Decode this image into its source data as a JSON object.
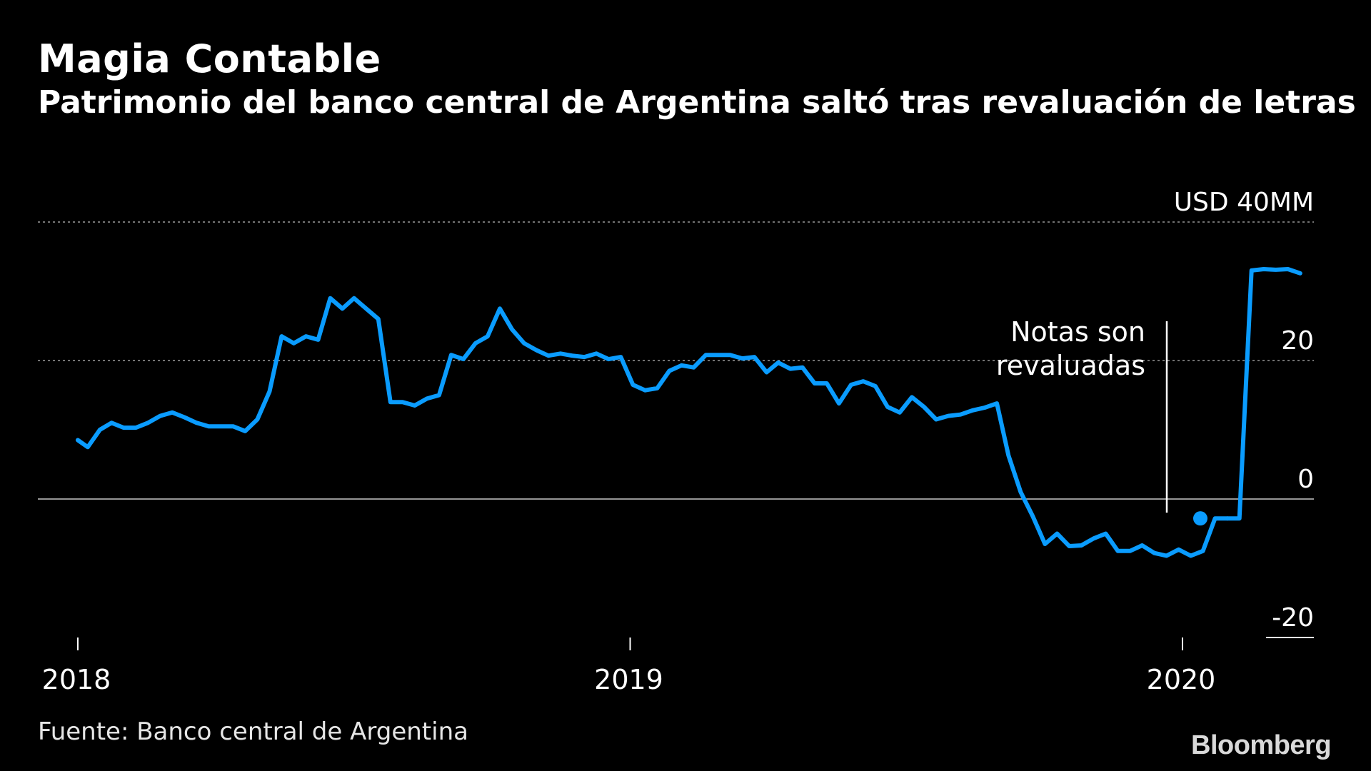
{
  "header": {
    "title": "Magia Contable",
    "subtitle": "Patrimonio del banco central de Argentina saltó tras revaluación de letras"
  },
  "footer": {
    "source": "Fuente: Banco central de Argentina",
    "logo": "Bloomberg"
  },
  "colors": {
    "background": "#000000",
    "line": "#0a9cff",
    "grid": "#9a9a9a",
    "zero_line": "#c8c8c8",
    "text": "#ffffff"
  },
  "chart_data": {
    "type": "line",
    "title": "Magia Contable",
    "subtitle": "Patrimonio del banco central de Argentina saltó tras revaluación de letras",
    "y_unit_label": "USD 40MM",
    "ylim": [
      -20,
      40
    ],
    "y_ticks": [
      40,
      20,
      0,
      -20
    ],
    "y_tick_labels": [
      "USD 40MM",
      "20",
      "0",
      "-20"
    ],
    "xlim": [
      2018.0,
      2020.24
    ],
    "x_ticks": [
      2018,
      2019,
      2020
    ],
    "x_tick_labels": [
      "2018",
      "2019",
      "2020"
    ],
    "grid": true,
    "series": [
      {
        "x": [
          2018.0,
          2018.018,
          2018.04,
          2018.061,
          2018.083,
          2018.105,
          2018.127,
          2018.149,
          2018.171,
          2018.193,
          2018.215,
          2018.237,
          2018.259,
          2018.281,
          2018.303,
          2018.325,
          2018.347,
          2018.369,
          2018.391,
          2018.413,
          2018.435,
          2018.457,
          2018.479,
          2018.5,
          2018.522,
          2018.544,
          2018.566,
          2018.588,
          2018.61,
          2018.632,
          2018.654,
          2018.676,
          2018.698,
          2018.72,
          2018.742,
          2018.764,
          2018.786,
          2018.808,
          2018.83,
          2018.852,
          2018.874,
          2018.895,
          2018.917,
          2018.939,
          2018.961,
          2018.983,
          2019.005,
          2019.027,
          2019.049,
          2019.071,
          2019.093,
          2019.115,
          2019.137,
          2019.159,
          2019.181,
          2019.203,
          2019.225,
          2019.247,
          2019.268,
          2019.29,
          2019.312,
          2019.334,
          2019.356,
          2019.378,
          2019.4,
          2019.422,
          2019.444,
          2019.466,
          2019.488,
          2019.51,
          2019.532,
          2019.554,
          2019.576,
          2019.598,
          2019.62,
          2019.642,
          2019.664,
          2019.685,
          2019.707,
          2019.729,
          2019.751,
          2019.773,
          2019.795,
          2019.817,
          2019.839,
          2019.861,
          2019.883,
          2019.905,
          2019.927,
          2019.949,
          2019.971,
          2019.993,
          2020.015,
          2020.037,
          2020.059,
          2020.081
        ],
        "y": [
          8.5,
          7.5,
          10.0,
          11.0,
          10.3,
          10.3,
          11.0,
          12.0,
          12.5,
          11.8,
          11.0,
          10.5,
          10.5,
          10.5,
          9.8,
          11.5,
          15.5,
          23.5,
          22.5,
          23.5,
          23.0,
          29.0,
          27.5,
          29.0,
          27.5,
          26.0,
          14.0,
          14.0,
          13.5,
          14.5,
          15.0,
          20.8,
          20.2,
          22.5,
          23.5,
          27.5,
          24.5,
          22.5,
          21.5,
          20.7,
          21.0,
          20.7,
          20.5,
          21.0,
          20.2,
          20.5,
          16.5,
          15.7,
          16.0,
          18.5,
          19.3,
          19.0,
          20.8,
          20.8,
          20.8,
          20.3,
          20.5,
          18.3,
          19.7,
          18.8,
          19.0,
          16.7,
          16.7,
          13.8,
          16.5,
          17.0,
          16.3,
          13.3,
          12.5,
          14.7,
          13.3,
          11.5,
          12.0,
          12.2,
          12.8,
          13.2,
          13.8,
          6.3,
          1.0,
          -2.5,
          -6.5,
          -5.0,
          -6.8,
          -6.7,
          -5.7,
          -5.0,
          -7.5,
          -7.5,
          -6.7,
          -7.8,
          -8.2,
          -7.3,
          -8.2,
          -7.5,
          -2.8,
          -2.8
        ]
      }
    ],
    "jump_series": {
      "x": [
        2020.081,
        2020.103,
        2020.125,
        2020.147,
        2020.169,
        2020.191,
        2020.213
      ],
      "y": [
        -2.8,
        -2.8,
        33.0,
        33.2,
        33.1,
        33.2,
        32.6
      ]
    },
    "marker": {
      "x": 2020.0,
      "y": -2.8
    },
    "annotation": {
      "text_line1": "Notas son",
      "text_line2": "revaluadas",
      "x": 2020.0
    }
  }
}
